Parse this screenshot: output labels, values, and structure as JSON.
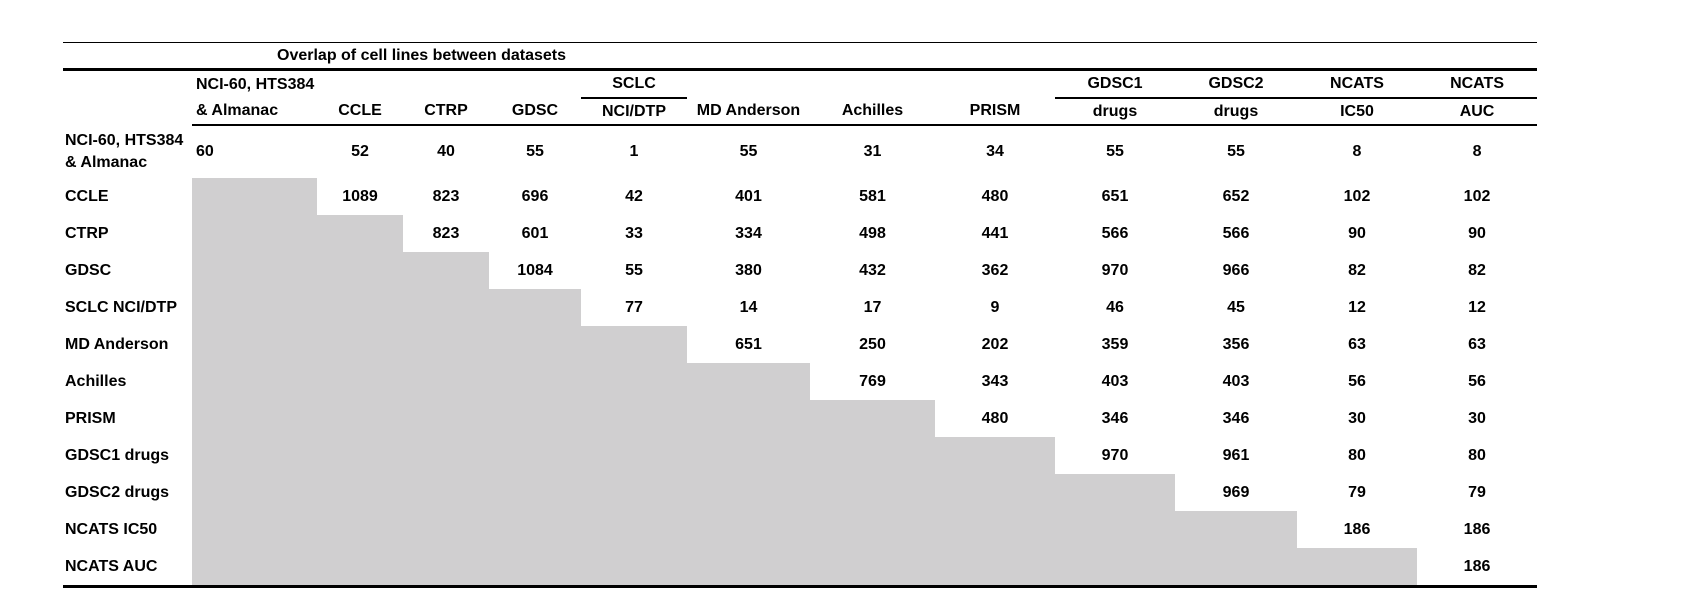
{
  "title": "Overlap of cell lines between datasets",
  "colors": {
    "shade": "#d0cfd0",
    "rule": "#000000",
    "background": "#ffffff",
    "text": "#000000"
  },
  "table": {
    "columns": [
      {
        "top": "NCI-60, HTS384",
        "bottom": "& Almanac",
        "underline_top": false
      },
      {
        "top": "",
        "bottom": "CCLE",
        "underline_top": false
      },
      {
        "top": "",
        "bottom": "CTRP",
        "underline_top": false
      },
      {
        "top": "",
        "bottom": "GDSC",
        "underline_top": false
      },
      {
        "top": "SCLC",
        "bottom": "NCI/DTP",
        "underline_top": true
      },
      {
        "top": "",
        "bottom": "MD Anderson",
        "underline_top": false
      },
      {
        "top": "",
        "bottom": "Achilles",
        "underline_top": false
      },
      {
        "top": "",
        "bottom": "PRISM",
        "underline_top": false
      },
      {
        "top": "GDSC1",
        "bottom": "drugs",
        "underline_top": true
      },
      {
        "top": "GDSC2",
        "bottom": "drugs",
        "underline_top": true
      },
      {
        "top": "NCATS",
        "bottom": "IC50",
        "underline_top": true
      },
      {
        "top": "NCATS",
        "bottom": "AUC",
        "underline_top": true
      }
    ],
    "rows": [
      {
        "label": "NCI-60, HTS384 & Almanac",
        "label_lines": [
          "NCI-60, HTS384",
          "& Almanac"
        ],
        "values": [
          60,
          52,
          40,
          55,
          1,
          55,
          31,
          34,
          55,
          55,
          8,
          8
        ]
      },
      {
        "label": "CCLE",
        "values": [
          null,
          1089,
          823,
          696,
          42,
          401,
          581,
          480,
          651,
          652,
          102,
          102
        ]
      },
      {
        "label": "CTRP",
        "values": [
          null,
          null,
          823,
          601,
          33,
          334,
          498,
          441,
          566,
          566,
          90,
          90
        ]
      },
      {
        "label": "GDSC",
        "values": [
          null,
          null,
          null,
          1084,
          55,
          380,
          432,
          362,
          970,
          966,
          82,
          82
        ]
      },
      {
        "label": "SCLC NCI/DTP",
        "values": [
          null,
          null,
          null,
          null,
          77,
          14,
          17,
          9,
          46,
          45,
          12,
          12
        ]
      },
      {
        "label": "MD Anderson",
        "values": [
          null,
          null,
          null,
          null,
          null,
          651,
          250,
          202,
          359,
          356,
          63,
          63
        ]
      },
      {
        "label": "Achilles",
        "values": [
          null,
          null,
          null,
          null,
          null,
          null,
          769,
          343,
          403,
          403,
          56,
          56
        ]
      },
      {
        "label": "PRISM",
        "values": [
          null,
          null,
          null,
          null,
          null,
          null,
          null,
          480,
          346,
          346,
          30,
          30
        ]
      },
      {
        "label": "GDSC1 drugs",
        "values": [
          null,
          null,
          null,
          null,
          null,
          null,
          null,
          null,
          970,
          961,
          80,
          80
        ]
      },
      {
        "label": "GDSC2 drugs",
        "values": [
          null,
          null,
          null,
          null,
          null,
          null,
          null,
          null,
          null,
          969,
          79,
          79
        ]
      },
      {
        "label": "NCATS IC50",
        "values": [
          null,
          null,
          null,
          null,
          null,
          null,
          null,
          null,
          null,
          null,
          186,
          186
        ]
      },
      {
        "label": "NCATS AUC",
        "values": [
          null,
          null,
          null,
          null,
          null,
          null,
          null,
          null,
          null,
          null,
          null,
          186
        ]
      }
    ]
  }
}
